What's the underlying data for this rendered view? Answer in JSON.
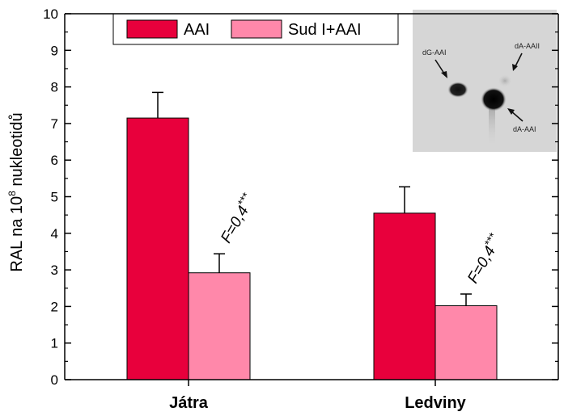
{
  "colors": {
    "series_aai": "#e8003c",
    "series_sud": "#ff88aa",
    "axis": "#000000",
    "inset_bg": "#d6d6d6"
  },
  "chart_data": {
    "type": "bar",
    "categories": [
      "Játra",
      "Ledviny"
    ],
    "series": [
      {
        "name": "AAI",
        "values": [
          7.15,
          4.55
        ],
        "errors": [
          0.7,
          0.72
        ]
      },
      {
        "name": "Sud I+AAI",
        "values": [
          2.92,
          2.02
        ],
        "errors": [
          0.52,
          0.32
        ]
      }
    ],
    "yticks": [
      "0",
      "1",
      "2",
      "3",
      "4",
      "5",
      "6",
      "7",
      "8",
      "9",
      "10"
    ],
    "ylim": [
      0,
      10
    ],
    "ylabel_parts": {
      "pre": "RAL na 10",
      "sup": "8",
      "post": " nukleotidů"
    },
    "annotations": [
      {
        "category": 0,
        "text_main": "F=0,4",
        "text_stars": "***"
      },
      {
        "category": 1,
        "text_main": "F=0,4",
        "text_stars": "***"
      }
    ],
    "legend": {
      "placement": "top-left"
    }
  },
  "inset": {
    "labels": [
      "dG-AAI",
      "dA-AAII",
      "dA-AAI"
    ]
  }
}
